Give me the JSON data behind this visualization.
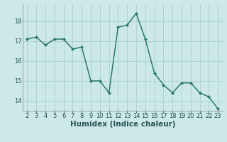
{
  "x": [
    2,
    3,
    4,
    5,
    6,
    7,
    8,
    9,
    10,
    11,
    12,
    13,
    14,
    15,
    16,
    17,
    18,
    19,
    20,
    21,
    22,
    23
  ],
  "y": [
    17.1,
    17.2,
    16.8,
    17.1,
    17.1,
    16.6,
    16.7,
    15.0,
    15.0,
    14.4,
    17.7,
    17.8,
    18.4,
    17.1,
    15.4,
    14.8,
    14.4,
    14.9,
    14.9,
    14.4,
    14.2,
    13.6
  ],
  "bg_color": "#cce8e8",
  "grid_color": "#aacfcf",
  "line_color": "#2d7a6a",
  "marker_color": "#2d7a6a",
  "xlabel": "Humidex (Indice chaleur)",
  "xlim": [
    1.5,
    23.5
  ],
  "ylim": [
    13.5,
    18.85
  ],
  "yticks": [
    14,
    15,
    16,
    17,
    18
  ],
  "xticks": [
    2,
    3,
    4,
    5,
    6,
    7,
    8,
    9,
    10,
    11,
    12,
    13,
    14,
    15,
    16,
    17,
    18,
    19,
    20,
    21,
    22,
    23
  ],
  "tick_fontsize": 6,
  "xlabel_fontsize": 7.5,
  "line_width": 1.1,
  "marker_size": 2.2
}
